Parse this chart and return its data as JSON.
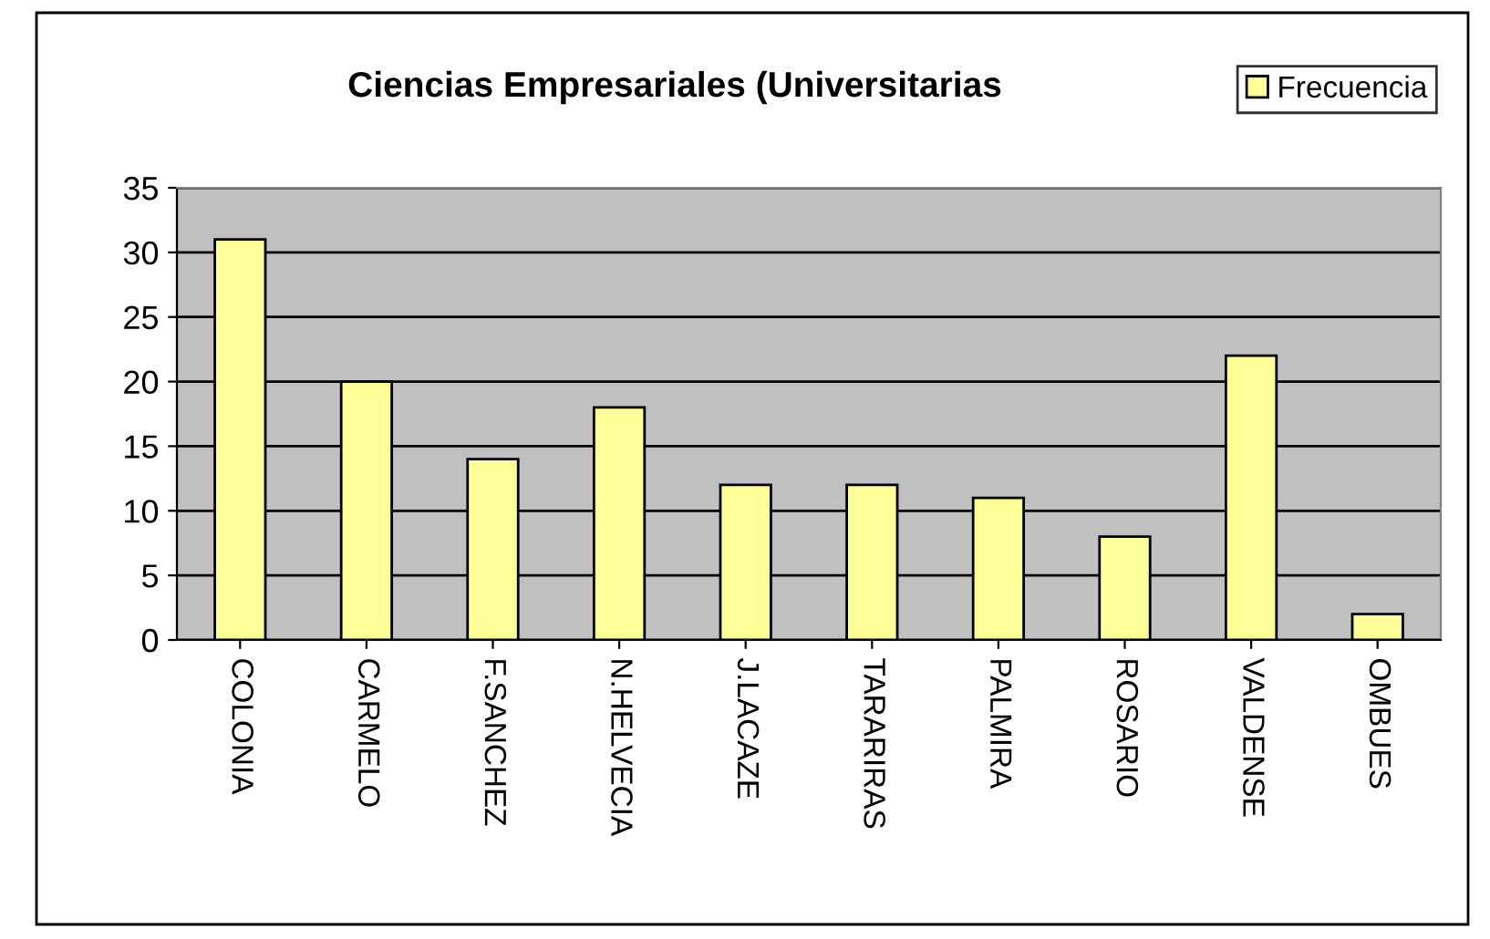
{
  "chart_data": {
    "type": "bar",
    "title": "Ciencias Empresariales (Universitarias",
    "categories": [
      "COLONIA",
      "CARMELO",
      "F.SANCHEZ",
      "N.HELVECIA",
      "J.LACAZE",
      "TARARIRAS",
      "PALMIRA",
      "ROSARIO",
      "VALDENSE",
      "OMBUES"
    ],
    "series": [
      {
        "name": "Frecuencia",
        "color": "#ffff99",
        "values": [
          31,
          20,
          14,
          18,
          12,
          12,
          11,
          8,
          22,
          2
        ]
      }
    ],
    "ylim": [
      0,
      35
    ],
    "yticks": [
      0,
      5,
      10,
      15,
      20,
      25,
      30,
      35
    ],
    "grid": "y",
    "legend": "top right"
  }
}
